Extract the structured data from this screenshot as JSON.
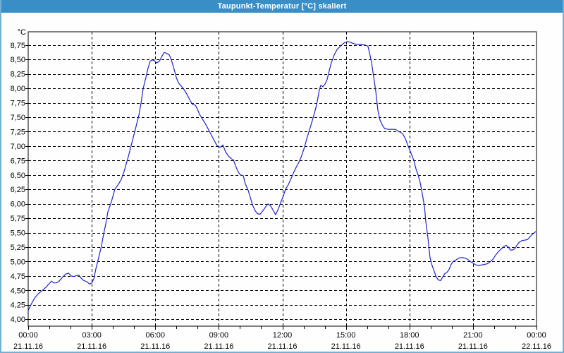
{
  "window": {
    "title": "Taupunkt-Temperatur [°C] skaliert"
  },
  "colors": {
    "titlebar_bg": "#3a8ec6",
    "title_text": "#ffffff",
    "window_border": "#74afd6",
    "plot_background": "#fdfefd",
    "axis_frame": "#000000",
    "grid": "#000000",
    "series_line": "#2222cc"
  },
  "chart_data": {
    "type": "line",
    "title": "Taupunkt-Temperatur [°C] skaliert",
    "ylabel": "°C",
    "ylim": [
      3.88,
      8.98
    ],
    "xlim_hours": [
      0,
      24
    ],
    "grid": {
      "style": "dashed",
      "horizontal_step": 0.25,
      "vertical_step_hours": 3,
      "minor_tick_hours": 1
    },
    "y_ticks": {
      "start": 8.75,
      "step": -0.25,
      "labels": [
        "8,75",
        "8,50",
        "8,25",
        "8,00",
        "7,75",
        "7,50",
        "7,25",
        "7,00",
        "6,75",
        "6,50",
        "6,25",
        "6,00",
        "5,75",
        "5,50",
        "5,25",
        "5,00",
        "4,75",
        "4,50",
        "4,25",
        "4,00"
      ]
    },
    "x_ticks": [
      {
        "hour": 0,
        "time": "00:00",
        "date": "21.11.16"
      },
      {
        "hour": 3,
        "time": "03:00",
        "date": "21.11.16"
      },
      {
        "hour": 6,
        "time": "06:00",
        "date": "21.11.16"
      },
      {
        "hour": 9,
        "time": "09:00",
        "date": "21.11.16"
      },
      {
        "hour": 12,
        "time": "12:00",
        "date": "21.11.16"
      },
      {
        "hour": 15,
        "time": "15:00",
        "date": "21.11.16"
      },
      {
        "hour": 18,
        "time": "18:00",
        "date": "21.11.16"
      },
      {
        "hour": 21,
        "time": "21:00",
        "date": "21.11.16"
      },
      {
        "hour": 24,
        "time": "00:00",
        "date": "22.11.16"
      }
    ],
    "series": [
      {
        "name": "Taupunkt-Temperatur",
        "color": "#2222cc",
        "points": [
          [
            0.0,
            4.15
          ],
          [
            0.17,
            4.28
          ],
          [
            0.33,
            4.38
          ],
          [
            0.5,
            4.45
          ],
          [
            0.67,
            4.5
          ],
          [
            0.83,
            4.55
          ],
          [
            1.0,
            4.62
          ],
          [
            1.1,
            4.66
          ],
          [
            1.2,
            4.63
          ],
          [
            1.33,
            4.63
          ],
          [
            1.46,
            4.66
          ],
          [
            1.6,
            4.72
          ],
          [
            1.76,
            4.78
          ],
          [
            1.9,
            4.8
          ],
          [
            2.03,
            4.75
          ],
          [
            2.16,
            4.74
          ],
          [
            2.3,
            4.76
          ],
          [
            2.4,
            4.76
          ],
          [
            2.5,
            4.71
          ],
          [
            2.63,
            4.67
          ],
          [
            2.76,
            4.65
          ],
          [
            2.9,
            4.61
          ],
          [
            3.0,
            4.63
          ],
          [
            3.1,
            4.7
          ],
          [
            3.2,
            4.88
          ],
          [
            3.33,
            5.07
          ],
          [
            3.46,
            5.27
          ],
          [
            3.56,
            5.47
          ],
          [
            3.66,
            5.65
          ],
          [
            3.76,
            5.86
          ],
          [
            3.93,
            6.04
          ],
          [
            4.09,
            6.25
          ],
          [
            4.26,
            6.34
          ],
          [
            4.39,
            6.42
          ],
          [
            4.49,
            6.52
          ],
          [
            4.56,
            6.6
          ],
          [
            4.73,
            6.82
          ],
          [
            4.89,
            7.05
          ],
          [
            5.06,
            7.29
          ],
          [
            5.23,
            7.54
          ],
          [
            5.33,
            7.75
          ],
          [
            5.43,
            8.0
          ],
          [
            5.56,
            8.19
          ],
          [
            5.66,
            8.35
          ],
          [
            5.76,
            8.47
          ],
          [
            5.86,
            8.49
          ],
          [
            5.96,
            8.48
          ],
          [
            6.06,
            8.44
          ],
          [
            6.16,
            8.46
          ],
          [
            6.22,
            8.49
          ],
          [
            6.32,
            8.56
          ],
          [
            6.42,
            8.62
          ],
          [
            6.52,
            8.61
          ],
          [
            6.66,
            8.58
          ],
          [
            6.76,
            8.49
          ],
          [
            6.89,
            8.33
          ],
          [
            6.99,
            8.19
          ],
          [
            7.09,
            8.1
          ],
          [
            7.22,
            8.04
          ],
          [
            7.32,
            8.0
          ],
          [
            7.42,
            7.94
          ],
          [
            7.52,
            7.88
          ],
          [
            7.66,
            7.78
          ],
          [
            7.76,
            7.72
          ],
          [
            7.89,
            7.71
          ],
          [
            7.99,
            7.64
          ],
          [
            8.09,
            7.55
          ],
          [
            8.26,
            7.45
          ],
          [
            8.42,
            7.35
          ],
          [
            8.59,
            7.23
          ],
          [
            8.75,
            7.12
          ],
          [
            8.85,
            7.05
          ],
          [
            8.95,
            6.99
          ],
          [
            9.09,
            6.98
          ],
          [
            9.19,
            7.02
          ],
          [
            9.32,
            6.9
          ],
          [
            9.45,
            6.83
          ],
          [
            9.59,
            6.78
          ],
          [
            9.69,
            6.76
          ],
          [
            9.82,
            6.63
          ],
          [
            9.92,
            6.55
          ],
          [
            10.02,
            6.5
          ],
          [
            10.15,
            6.49
          ],
          [
            10.25,
            6.35
          ],
          [
            10.39,
            6.23
          ],
          [
            10.49,
            6.11
          ],
          [
            10.59,
            5.98
          ],
          [
            10.72,
            5.88
          ],
          [
            10.82,
            5.83
          ],
          [
            10.95,
            5.82
          ],
          [
            11.08,
            5.88
          ],
          [
            11.22,
            5.95
          ],
          [
            11.32,
            6.0
          ],
          [
            11.45,
            5.96
          ],
          [
            11.58,
            5.88
          ],
          [
            11.68,
            5.81
          ],
          [
            11.82,
            5.92
          ],
          [
            11.92,
            6.02
          ],
          [
            12.05,
            6.14
          ],
          [
            12.15,
            6.25
          ],
          [
            12.28,
            6.33
          ],
          [
            12.38,
            6.41
          ],
          [
            12.52,
            6.53
          ],
          [
            12.65,
            6.63
          ],
          [
            12.78,
            6.72
          ],
          [
            12.88,
            6.8
          ],
          [
            13.02,
            6.95
          ],
          [
            13.15,
            7.12
          ],
          [
            13.28,
            7.28
          ],
          [
            13.42,
            7.45
          ],
          [
            13.55,
            7.62
          ],
          [
            13.65,
            7.78
          ],
          [
            13.75,
            7.98
          ],
          [
            13.81,
            8.05
          ],
          [
            13.91,
            8.03
          ],
          [
            14.01,
            8.07
          ],
          [
            14.11,
            8.15
          ],
          [
            14.21,
            8.3
          ],
          [
            14.31,
            8.44
          ],
          [
            14.45,
            8.58
          ],
          [
            14.58,
            8.67
          ],
          [
            14.71,
            8.72
          ],
          [
            14.85,
            8.77
          ],
          [
            14.98,
            8.8
          ],
          [
            15.11,
            8.81
          ],
          [
            15.25,
            8.79
          ],
          [
            15.41,
            8.77
          ],
          [
            15.58,
            8.76
          ],
          [
            15.74,
            8.76
          ],
          [
            15.91,
            8.75
          ],
          [
            16.04,
            8.73
          ],
          [
            16.11,
            8.62
          ],
          [
            16.21,
            8.45
          ],
          [
            16.31,
            8.2
          ],
          [
            16.41,
            7.95
          ],
          [
            16.51,
            7.62
          ],
          [
            16.61,
            7.45
          ],
          [
            16.74,
            7.35
          ],
          [
            16.84,
            7.3
          ],
          [
            17.01,
            7.29
          ],
          [
            17.18,
            7.29
          ],
          [
            17.34,
            7.29
          ],
          [
            17.51,
            7.25
          ],
          [
            17.67,
            7.22
          ],
          [
            17.81,
            7.13
          ],
          [
            17.94,
            7.0
          ],
          [
            18.08,
            6.87
          ],
          [
            18.21,
            6.75
          ],
          [
            18.31,
            6.6
          ],
          [
            18.41,
            6.5
          ],
          [
            18.51,
            6.36
          ],
          [
            18.57,
            6.25
          ],
          [
            18.64,
            6.1
          ],
          [
            18.71,
            5.95
          ],
          [
            18.77,
            5.7
          ],
          [
            18.87,
            5.42
          ],
          [
            18.97,
            5.07
          ],
          [
            19.07,
            4.93
          ],
          [
            19.17,
            4.83
          ],
          [
            19.27,
            4.73
          ],
          [
            19.37,
            4.68
          ],
          [
            19.47,
            4.67
          ],
          [
            19.57,
            4.73
          ],
          [
            19.67,
            4.79
          ],
          [
            19.77,
            4.81
          ],
          [
            19.87,
            4.86
          ],
          [
            19.97,
            4.95
          ],
          [
            20.07,
            5.0
          ],
          [
            20.21,
            5.03
          ],
          [
            20.34,
            5.06
          ],
          [
            20.47,
            5.07
          ],
          [
            20.61,
            5.06
          ],
          [
            20.74,
            5.04
          ],
          [
            20.87,
            5.0
          ],
          [
            21.01,
            4.97
          ],
          [
            21.14,
            4.94
          ],
          [
            21.27,
            4.93
          ],
          [
            21.4,
            4.94
          ],
          [
            21.54,
            4.95
          ],
          [
            21.67,
            4.96
          ],
          [
            21.8,
            4.99
          ],
          [
            21.94,
            5.04
          ],
          [
            22.07,
            5.11
          ],
          [
            22.2,
            5.17
          ],
          [
            22.34,
            5.22
          ],
          [
            22.47,
            5.26
          ],
          [
            22.57,
            5.28
          ],
          [
            22.67,
            5.25
          ],
          [
            22.77,
            5.2
          ],
          [
            22.87,
            5.2
          ],
          [
            22.97,
            5.22
          ],
          [
            23.07,
            5.28
          ],
          [
            23.17,
            5.33
          ],
          [
            23.3,
            5.36
          ],
          [
            23.43,
            5.37
          ],
          [
            23.57,
            5.38
          ],
          [
            23.67,
            5.42
          ],
          [
            23.77,
            5.46
          ],
          [
            23.87,
            5.49
          ],
          [
            23.97,
            5.52
          ]
        ]
      }
    ]
  }
}
